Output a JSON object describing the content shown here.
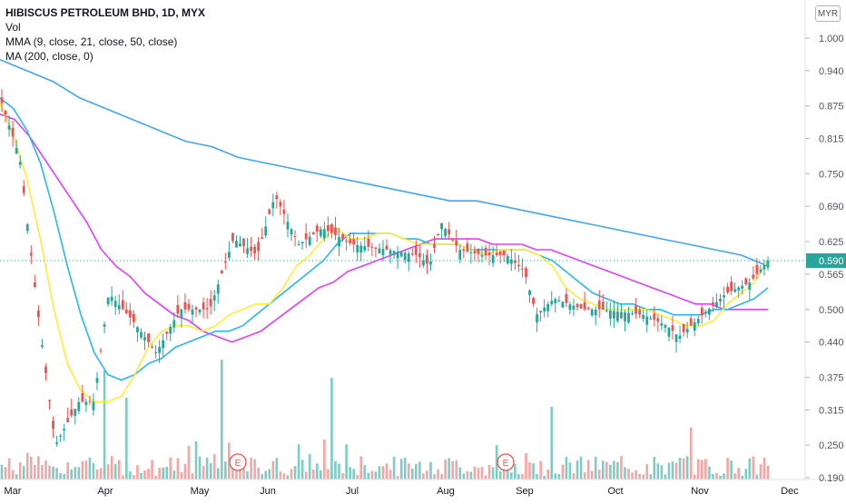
{
  "legend": {
    "title": "HIBISCUS PETROLEUM BHD, 1D, MYX",
    "vol": "Vol",
    "mma": "MMA (9, close, 21, close, 50, close)",
    "ma": "MA (200, close, 0)"
  },
  "currency": "MYR",
  "price_tag": "0.590",
  "colors": {
    "up": "#26a69a",
    "down": "#ef5350",
    "vol_up": "#80cbc4",
    "vol_down": "#f4a6a5",
    "mma9": "#ffeb3b",
    "mma21": "#29b6f6",
    "mma50": "#e040fb",
    "ma200": "#42a5f5",
    "tag": "#26a69a"
  },
  "chart_data": {
    "type": "candlestick",
    "symbol": "HIBISCUS PETROLEUM BHD",
    "interval": "1D",
    "exchange": "MYX",
    "y_ticks": [
      "1.000",
      "0.940",
      "0.875",
      "0.815",
      "0.750",
      "0.690",
      "0.625",
      "0.565",
      "0.500",
      "0.440",
      "0.375",
      "0.315",
      "0.250",
      "0.190"
    ],
    "x_ticks": [
      "Mar",
      "Apr",
      "May",
      "Jun",
      "Jul",
      "Aug",
      "Sep",
      "Oct",
      "Nov",
      "Dec"
    ],
    "ylim": [
      0.17,
      1.03
    ],
    "last_price": 0.59,
    "earnings_markers": [
      "E",
      "E"
    ],
    "key_prices": {
      "start": 0.88,
      "march_low": 0.25,
      "april_open": 0.33,
      "may_low": 0.42,
      "june_high": 0.71,
      "august_high": 0.66,
      "september_low": 0.49,
      "november_low": 0.45,
      "last": 0.59
    },
    "mma9_path": [
      0.88,
      0.82,
      0.74,
      0.63,
      0.5,
      0.4,
      0.35,
      0.33,
      0.33,
      0.34,
      0.38,
      0.43,
      0.46,
      0.47,
      0.47,
      0.46,
      0.47,
      0.49,
      0.5,
      0.51,
      0.51,
      0.54,
      0.58,
      0.6,
      0.63,
      0.65,
      0.63,
      0.63,
      0.64,
      0.64,
      0.63,
      0.62,
      0.62,
      0.62,
      0.62,
      0.61,
      0.6,
      0.61,
      0.61,
      0.61,
      0.6,
      0.58,
      0.54,
      0.52,
      0.51,
      0.5,
      0.5,
      0.5,
      0.5,
      0.49,
      0.48,
      0.47,
      0.47,
      0.48,
      0.51,
      0.53,
      0.55,
      0.59
    ],
    "mma21_path": [
      0.89,
      0.87,
      0.83,
      0.77,
      0.68,
      0.58,
      0.49,
      0.42,
      0.38,
      0.37,
      0.38,
      0.4,
      0.41,
      0.43,
      0.44,
      0.45,
      0.46,
      0.46,
      0.47,
      0.49,
      0.51,
      0.53,
      0.55,
      0.57,
      0.59,
      0.62,
      0.64,
      0.64,
      0.64,
      0.64,
      0.63,
      0.63,
      0.62,
      0.62,
      0.62,
      0.61,
      0.61,
      0.61,
      0.61,
      0.61,
      0.6,
      0.59,
      0.57,
      0.55,
      0.53,
      0.52,
      0.51,
      0.51,
      0.5,
      0.5,
      0.49,
      0.49,
      0.49,
      0.5,
      0.5,
      0.51,
      0.52,
      0.54
    ],
    "mma50_path": [
      0.86,
      0.85,
      0.82,
      0.78,
      0.74,
      0.7,
      0.66,
      0.61,
      0.58,
      0.56,
      0.53,
      0.51,
      0.49,
      0.48,
      0.46,
      0.45,
      0.44,
      0.45,
      0.46,
      0.48,
      0.5,
      0.52,
      0.54,
      0.55,
      0.57,
      0.58,
      0.59,
      0.6,
      0.61,
      0.62,
      0.63,
      0.63,
      0.63,
      0.63,
      0.62,
      0.62,
      0.62,
      0.61,
      0.61,
      0.6,
      0.59,
      0.58,
      0.57,
      0.56,
      0.55,
      0.54,
      0.53,
      0.52,
      0.51,
      0.51,
      0.5,
      0.5,
      0.5,
      0.5
    ],
    "ma200_path": [
      0.96,
      0.94,
      0.92,
      0.89,
      0.87,
      0.85,
      0.83,
      0.81,
      0.8,
      0.78,
      0.77,
      0.76,
      0.75,
      0.74,
      0.73,
      0.72,
      0.71,
      0.7,
      0.7,
      0.69,
      0.68,
      0.67,
      0.66,
      0.65,
      0.64,
      0.63,
      0.62,
      0.61,
      0.6,
      0.58
    ]
  }
}
